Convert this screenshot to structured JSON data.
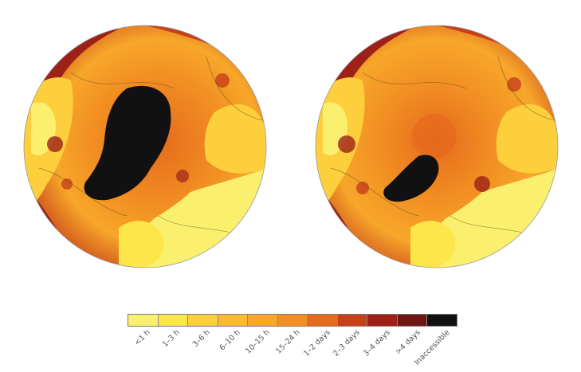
{
  "legend": {
    "classes": [
      {
        "label": "<1 h",
        "color": "#fbf06e"
      },
      {
        "label": "1–3 h",
        "color": "#fde64a"
      },
      {
        "label": "3–6 h",
        "color": "#fdcf3c"
      },
      {
        "label": "6–10 h",
        "color": "#fbbb31"
      },
      {
        "label": "10–15 h",
        "color": "#f7a72a"
      },
      {
        "label": "15–24 h",
        "color": "#f28f22"
      },
      {
        "label": "1–2 days",
        "color": "#e56a1d"
      },
      {
        "label": "2–3 days",
        "color": "#c7401a"
      },
      {
        "label": "3–4 days",
        "color": "#9e2118"
      },
      {
        "label": ">4 days",
        "color": "#6e1612"
      },
      {
        "label": "Inaccessible",
        "color": "#111111"
      }
    ]
  },
  "maps": [
    {
      "id": "left",
      "inaccessible_extent": "large"
    },
    {
      "id": "right",
      "inaccessible_extent": "small"
    }
  ]
}
